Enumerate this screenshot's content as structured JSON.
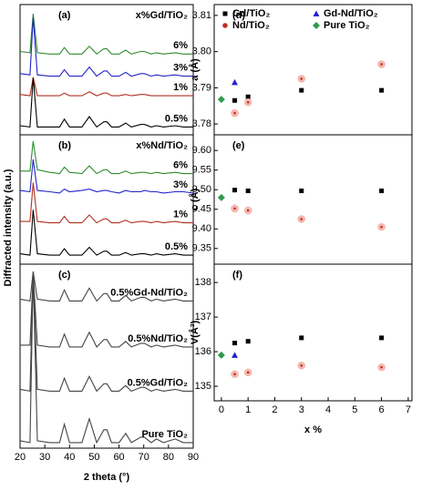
{
  "chart_data": [
    {
      "type": "line",
      "label": "(a)",
      "annotation": "x%Gd/TiO₂",
      "ylabel": "Diffracted intensity (a.u.)",
      "xlim": [
        20,
        90
      ],
      "ylim": [
        0,
        100
      ],
      "x": [
        20,
        24,
        25.3,
        27,
        32,
        36,
        37.9,
        40,
        45,
        48,
        51,
        53.9,
        55.1,
        57,
        60,
        62.7,
        65,
        68.8,
        70.3,
        73,
        75.1,
        78,
        82.7,
        86,
        90
      ],
      "series": [
        {
          "name": "6%",
          "color": "#2e8b2e",
          "values": [
            64,
            63,
            93,
            63,
            62,
            62,
            67,
            62,
            62,
            68,
            62,
            66,
            66,
            62,
            62,
            65,
            62,
            64,
            64,
            62,
            63,
            62,
            63,
            62,
            62
          ]
        },
        {
          "name": "3%",
          "color": "#2424c8",
          "values": [
            47,
            46,
            90,
            46,
            45,
            45,
            50,
            45,
            45,
            52,
            45,
            49,
            49,
            45,
            45,
            48,
            45,
            47,
            47,
            45,
            46,
            45,
            46,
            45,
            45
          ]
        },
        {
          "name": "1%",
          "color": "#b03020",
          "values": [
            31,
            30,
            44,
            30,
            30,
            30,
            32,
            30,
            30,
            33,
            30,
            32,
            32,
            30,
            30,
            31,
            30,
            31,
            31,
            30,
            30,
            30,
            30,
            30,
            30
          ]
        },
        {
          "name": "0.5%",
          "color": "#000000",
          "values": [
            7,
            6,
            44,
            6,
            6,
            6,
            12,
            6,
            6,
            14,
            6,
            10,
            10,
            6,
            6,
            9,
            6,
            8,
            8,
            6,
            7,
            6,
            7,
            6,
            6
          ]
        }
      ]
    },
    {
      "type": "line",
      "label": "(b)",
      "annotation": "x%Nd/TiO₂",
      "xlim": [
        20,
        90
      ],
      "ylim": [
        0,
        100
      ],
      "x": [
        20,
        24,
        25.3,
        27,
        32,
        36,
        37.9,
        40,
        45,
        48,
        51,
        53.9,
        55.1,
        57,
        60,
        62.7,
        65,
        68.8,
        70.3,
        73,
        75.1,
        78,
        82.7,
        86,
        90
      ],
      "series": [
        {
          "name": "6%",
          "color": "#2e8b2e",
          "values": [
            72,
            72,
            95,
            73,
            71,
            70,
            75,
            71,
            70,
            76,
            70,
            73,
            73,
            70,
            70,
            72,
            70,
            71,
            71,
            70,
            71,
            70,
            71,
            70,
            70
          ]
        },
        {
          "name": "3%",
          "color": "#2424c8",
          "values": [
            57,
            56,
            81,
            57,
            56,
            55,
            58,
            56,
            57,
            58,
            56,
            57,
            57,
            56,
            55,
            57,
            56,
            56,
            57,
            56,
            56,
            55,
            56,
            56,
            55
          ]
        },
        {
          "name": "1%",
          "color": "#b03020",
          "values": [
            33,
            33,
            63,
            33,
            32,
            32,
            37,
            32,
            32,
            38,
            32,
            35,
            35,
            32,
            32,
            34,
            32,
            33,
            33,
            32,
            33,
            32,
            33,
            32,
            32
          ]
        },
        {
          "name": "0.5%",
          "color": "#000000",
          "values": [
            8,
            7,
            42,
            8,
            7,
            7,
            12,
            7,
            7,
            13,
            7,
            10,
            10,
            7,
            7,
            9,
            7,
            8,
            8,
            7,
            8,
            7,
            8,
            7,
            7
          ]
        }
      ]
    },
    {
      "type": "line",
      "label": "(c)",
      "xlabel": "2 theta (°)",
      "xlim": [
        20,
        90
      ],
      "ylim": [
        0,
        100
      ],
      "xticks": [
        20,
        30,
        40,
        50,
        60,
        70,
        80,
        90
      ],
      "x": [
        20,
        24,
        25.3,
        27,
        32,
        36,
        37.9,
        40,
        45,
        48,
        51,
        53.9,
        55.1,
        57,
        60,
        62.7,
        65,
        68.8,
        70.3,
        73,
        75.1,
        78,
        82.7,
        86,
        90
      ],
      "series": [
        {
          "name": "0.5%Gd-Nd/TiO₂",
          "color": "#444444",
          "values": [
            81,
            80,
            96,
            81,
            80,
            80,
            86,
            80,
            80,
            87,
            80,
            84,
            84,
            80,
            80,
            83,
            80,
            82,
            82,
            80,
            81,
            80,
            81,
            80,
            80
          ]
        },
        {
          "name": "0.5%Nd/TiO₂",
          "color": "#444444",
          "values": [
            56,
            56,
            95,
            56,
            55,
            55,
            62,
            55,
            55,
            63,
            55,
            59,
            59,
            55,
            55,
            58,
            55,
            57,
            57,
            55,
            56,
            55,
            56,
            55,
            55
          ]
        },
        {
          "name": "0.5%Gd/TiO₂",
          "color": "#444444",
          "values": [
            32,
            31,
            95,
            32,
            31,
            31,
            38,
            31,
            31,
            39,
            31,
            35,
            35,
            31,
            31,
            34,
            31,
            33,
            33,
            31,
            32,
            31,
            32,
            31,
            31
          ]
        },
        {
          "name": "Pure TiO₂",
          "color": "#444444",
          "values": [
            4,
            3,
            95,
            4,
            3,
            3,
            13,
            3,
            3,
            16,
            3,
            10,
            10,
            3,
            3,
            8,
            3,
            6,
            6,
            3,
            5,
            3,
            5,
            3,
            3
          ]
        }
      ]
    },
    {
      "type": "scatter",
      "label": "(d)",
      "ylabel": "a (Å)",
      "xlim": [
        -0.27,
        7.14
      ],
      "ylim": [
        3.777,
        3.813
      ],
      "yticks": [
        3.78,
        3.79,
        {
          "value": 3.8,
          "label": "3.80"
        },
        3.81
      ],
      "series": [
        {
          "name": "Gd/TiO₂",
          "color": "#000000",
          "marker": "square",
          "x": [
            0.5,
            1,
            3,
            6
          ],
          "values": [
            3.7865,
            3.7875,
            3.7893,
            3.7893
          ]
        },
        {
          "name": "Gd-Nd/TiO₂",
          "color": "#2424c8",
          "marker": "triangle",
          "x": [
            0.5
          ],
          "values": [
            3.7915
          ]
        },
        {
          "name": "Nd/TiO₂",
          "color": "#c03020",
          "marker": "circle",
          "x": [
            0.5,
            1,
            3,
            6
          ],
          "values": [
            3.783,
            3.786,
            3.7925,
            3.7965
          ]
        },
        {
          "name": "Pure TiO₂",
          "color": "#2e9b4e",
          "marker": "diamond",
          "x": [
            0
          ],
          "values": [
            3.7868
          ]
        }
      ]
    },
    {
      "type": "scatter",
      "label": "(e)",
      "ylabel": "c (Å)",
      "xlim": [
        -0.27,
        7.14
      ],
      "ylim": [
        9.31,
        9.64
      ],
      "yticks": [
        9.35,
        {
          "value": 9.4,
          "label": "9.40"
        },
        9.45,
        {
          "value": 9.5,
          "label": "9.50"
        },
        9.55,
        {
          "value": 9.6,
          "label": "9.60"
        }
      ],
      "series": [
        {
          "color": "#000000",
          "marker": "square",
          "x": [
            0.5,
            1,
            3,
            6
          ],
          "values": [
            9.499,
            9.497,
            9.497,
            9.497
          ]
        },
        {
          "color": "#2424c8",
          "marker": "triangle",
          "x": [
            0.5
          ],
          "values": [
            9.455
          ]
        },
        {
          "color": "#c03020",
          "marker": "circle",
          "x": [
            0.5,
            1,
            3,
            6
          ],
          "values": [
            9.452,
            9.447,
            9.425,
            9.405
          ]
        },
        {
          "color": "#2e9b4e",
          "marker": "diamond",
          "x": [
            0
          ],
          "values": [
            9.48
          ]
        }
      ]
    },
    {
      "type": "scatter",
      "label": "(f)",
      "ylabel": "V(Å³)",
      "xlabel": "x %",
      "xlim": [
        -0.27,
        7.14
      ],
      "ylim": [
        134.58,
        138.53
      ],
      "yticks": [
        135,
        136,
        137,
        138
      ],
      "xticks": [
        0,
        1,
        2,
        3,
        4,
        5,
        6,
        7
      ],
      "series": [
        {
          "color": "#000000",
          "marker": "square",
          "x": [
            0.5,
            1,
            3,
            6
          ],
          "values": [
            136.25,
            136.3,
            136.4,
            136.4
          ]
        },
        {
          "color": "#2424c8",
          "marker": "triangle",
          "x": [
            0.5
          ],
          "values": [
            135.9
          ]
        },
        {
          "color": "#c03020",
          "marker": "circle",
          "x": [
            0.5,
            1,
            3,
            6
          ],
          "values": [
            135.35,
            135.4,
            135.6,
            135.55
          ]
        },
        {
          "color": "#2e9b4e",
          "marker": "diamond",
          "x": [
            0
          ],
          "values": [
            135.9
          ]
        }
      ]
    }
  ]
}
